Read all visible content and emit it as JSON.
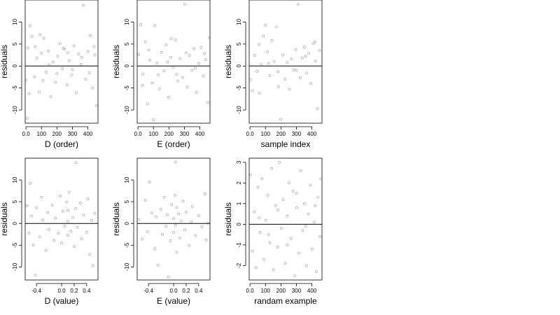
{
  "chart_data": [
    {
      "type": "scatter",
      "xlabel": "D (order)",
      "ylabel": "residuals",
      "xlim": [
        -5,
        465
      ],
      "ylim": [
        -13,
        15
      ],
      "xticks": [
        0,
        100,
        200,
        300,
        400
      ],
      "yticks": [
        -10,
        -5,
        0,
        5,
        10
      ],
      "hline": 0,
      "points": [
        [
          0,
          -3.2
        ],
        [
          12,
          4.1
        ],
        [
          25,
          9.1
        ],
        [
          40,
          6.7
        ],
        [
          55,
          -2.5
        ],
        [
          70,
          1.8
        ],
        [
          85,
          -5.9
        ],
        [
          100,
          2.9
        ],
        [
          115,
          6.3
        ],
        [
          130,
          -1.4
        ],
        [
          145,
          3.4
        ],
        [
          160,
          -7.0
        ],
        [
          175,
          0.9
        ],
        [
          190,
          -3.7
        ],
        [
          205,
          2.2
        ],
        [
          220,
          5.1
        ],
        [
          235,
          -0.6
        ],
        [
          250,
          3.8
        ],
        [
          265,
          -4.3
        ],
        [
          280,
          1.2
        ],
        [
          295,
          -2.0
        ],
        [
          310,
          4.6
        ],
        [
          325,
          -6.1
        ],
        [
          340,
          2.7
        ],
        [
          355,
          0.4
        ],
        [
          370,
          13.8
        ],
        [
          385,
          -3.0
        ],
        [
          400,
          3.3
        ],
        [
          415,
          6.9
        ],
        [
          430,
          -5.0
        ],
        [
          445,
          2.5
        ],
        [
          455,
          -9.0
        ],
        [
          20,
          -6.3
        ],
        [
          60,
          4.4
        ],
        [
          110,
          -3.3
        ],
        [
          150,
          0.2
        ],
        [
          200,
          -1.7
        ],
        [
          240,
          4.0
        ],
        [
          300,
          -0.8
        ],
        [
          360,
          2.0
        ],
        [
          410,
          -1.5
        ],
        [
          440,
          4.4
        ],
        [
          8,
          -11.9
        ],
        [
          90,
          7.1
        ],
        [
          270,
          3.0
        ]
      ]
    },
    {
      "type": "scatter",
      "xlabel": "E (order)",
      "ylabel": "residuals",
      "xlim": [
        -5,
        465
      ],
      "ylim": [
        -13,
        15
      ],
      "xticks": [
        0,
        100,
        200,
        300,
        400
      ],
      "yticks": [
        -10,
        -5,
        0,
        5,
        10
      ],
      "hline": 0,
      "points": [
        [
          5,
          2.6
        ],
        [
          18,
          9.4
        ],
        [
          32,
          -1.8
        ],
        [
          48,
          5.5
        ],
        [
          62,
          -8.6
        ],
        [
          78,
          1.3
        ],
        [
          92,
          -3.9
        ],
        [
          108,
          9.2
        ],
        [
          122,
          0.7
        ],
        [
          138,
          -5.2
        ],
        [
          152,
          3.1
        ],
        [
          168,
          -1.1
        ],
        [
          182,
          4.8
        ],
        [
          198,
          -7.1
        ],
        [
          212,
          2.0
        ],
        [
          228,
          -0.3
        ],
        [
          242,
          5.9
        ],
        [
          258,
          -3.4
        ],
        [
          272,
          1.7
        ],
        [
          288,
          -2.6
        ],
        [
          302,
          14.0
        ],
        [
          318,
          -4.8
        ],
        [
          332,
          2.4
        ],
        [
          348,
          -1.0
        ],
        [
          362,
          3.9
        ],
        [
          378,
          -6.0
        ],
        [
          392,
          0.6
        ],
        [
          408,
          4.2
        ],
        [
          422,
          -2.3
        ],
        [
          438,
          1.5
        ],
        [
          452,
          -8.3
        ],
        [
          28,
          -4.4
        ],
        [
          70,
          3.6
        ],
        [
          130,
          -2.0
        ],
        [
          190,
          0.9
        ],
        [
          250,
          -1.9
        ],
        [
          310,
          3.0
        ],
        [
          370,
          -0.5
        ],
        [
          430,
          2.8
        ],
        [
          460,
          6.4
        ],
        [
          100,
          -12.2
        ],
        [
          215,
          6.2
        ]
      ]
    },
    {
      "type": "scatter",
      "xlabel": "sample index",
      "ylabel": "residuals",
      "xlim": [
        -5,
        465
      ],
      "ylim": [
        -13,
        15
      ],
      "xticks": [
        0,
        100,
        200,
        300,
        400
      ],
      "yticks": [
        -10,
        -5,
        0,
        5,
        10
      ],
      "hline": 0,
      "points": [
        [
          3,
          -3.1
        ],
        [
          16,
          -5.6
        ],
        [
          30,
          2.4
        ],
        [
          45,
          -1.2
        ],
        [
          58,
          4.9
        ],
        [
          72,
          0.3
        ],
        [
          86,
          6.8
        ],
        [
          100,
          9.3
        ],
        [
          114,
          3.2
        ],
        [
          128,
          -2.2
        ],
        [
          142,
          5.8
        ],
        [
          156,
          1.0
        ],
        [
          170,
          8.9
        ],
        [
          184,
          -4.7
        ],
        [
          198,
          -12.1
        ],
        [
          212,
          2.5
        ],
        [
          226,
          -3.0
        ],
        [
          240,
          0.8
        ],
        [
          254,
          -5.3
        ],
        [
          268,
          1.6
        ],
        [
          282,
          -0.9
        ],
        [
          296,
          3.7
        ],
        [
          310,
          14.0
        ],
        [
          324,
          -2.7
        ],
        [
          338,
          1.9
        ],
        [
          352,
          4.3
        ],
        [
          366,
          -1.6
        ],
        [
          380,
          2.9
        ],
        [
          394,
          -4.0
        ],
        [
          408,
          5.1
        ],
        [
          422,
          1.1
        ],
        [
          436,
          -9.7
        ],
        [
          450,
          3.5
        ],
        [
          60,
          -6.2
        ],
        [
          120,
          0.6
        ],
        [
          180,
          -1.3
        ],
        [
          300,
          -1.0
        ],
        [
          360,
          2.2
        ],
        [
          420,
          5.5
        ]
      ]
    },
    {
      "type": "scatter",
      "xlabel": "D (value)",
      "ylabel": "residuals",
      "xlim": [
        -0.58,
        0.58
      ],
      "ylim": [
        -13,
        15
      ],
      "xticks": [
        -0.4,
        0.0,
        0.2,
        0.4
      ],
      "yticks": [
        -10,
        -5,
        0,
        5,
        10
      ],
      "hline": 0,
      "points": [
        [
          -0.55,
          4.1
        ],
        [
          -0.52,
          -2.2
        ],
        [
          -0.5,
          9.2
        ],
        [
          -0.48,
          1.7
        ],
        [
          -0.45,
          -5.0
        ],
        [
          -0.42,
          -11.9
        ],
        [
          -0.4,
          3.6
        ],
        [
          -0.35,
          -3.1
        ],
        [
          -0.32,
          6.0
        ],
        [
          -0.3,
          0.8
        ],
        [
          -0.25,
          -6.2
        ],
        [
          -0.22,
          2.5
        ],
        [
          -0.2,
          -1.4
        ],
        [
          -0.15,
          4.2
        ],
        [
          -0.12,
          -3.9
        ],
        [
          -0.1,
          1.2
        ],
        [
          -0.05,
          -2.3
        ],
        [
          -0.02,
          6.3
        ],
        [
          0.0,
          -4.5
        ],
        [
          0.02,
          2.8
        ],
        [
          0.05,
          -0.6
        ],
        [
          0.08,
          4.9
        ],
        [
          0.1,
          3.0
        ],
        [
          0.1,
          -2.7
        ],
        [
          0.1,
          0.5
        ],
        [
          0.12,
          7.2
        ],
        [
          0.15,
          -1.8
        ],
        [
          0.18,
          1.4
        ],
        [
          0.2,
          -5.3
        ],
        [
          0.22,
          3.4
        ],
        [
          0.25,
          -0.9
        ],
        [
          0.3,
          4.7
        ],
        [
          0.32,
          -3.5
        ],
        [
          0.35,
          1.9
        ],
        [
          0.4,
          -2.0
        ],
        [
          0.42,
          5.6
        ],
        [
          0.45,
          -7.1
        ],
        [
          0.48,
          0.7
        ],
        [
          0.5,
          -9.7
        ],
        [
          0.53,
          2.3
        ],
        [
          0.23,
          14.0
        ]
      ]
    },
    {
      "type": "scatter",
      "xlabel": "E (value)",
      "ylabel": "residuals",
      "xlim": [
        -0.58,
        0.58
      ],
      "ylim": [
        -13,
        15
      ],
      "xticks": [
        -0.4,
        0.0,
        0.2,
        0.4
      ],
      "yticks": [
        -10,
        -5,
        0,
        5,
        10
      ],
      "hline": 0,
      "points": [
        [
          -0.55,
          0.9
        ],
        [
          -0.5,
          -3.6
        ],
        [
          -0.45,
          5.3
        ],
        [
          -0.42,
          -1.9
        ],
        [
          -0.38,
          9.5
        ],
        [
          -0.35,
          2.4
        ],
        [
          -0.3,
          -5.8
        ],
        [
          -0.28,
          1.5
        ],
        [
          -0.25,
          -9.6
        ],
        [
          -0.2,
          3.2
        ],
        [
          -0.18,
          -2.5
        ],
        [
          -0.15,
          6.0
        ],
        [
          -0.12,
          -0.7
        ],
        [
          -0.1,
          2.0
        ],
        [
          -0.05,
          -4.0
        ],
        [
          -0.03,
          4.3
        ],
        [
          0.0,
          1.1
        ],
        [
          0.0,
          -2.1
        ],
        [
          0.02,
          6.5
        ],
        [
          0.03,
          -0.4
        ],
        [
          0.05,
          3.7
        ],
        [
          0.05,
          -6.6
        ],
        [
          0.08,
          2.2
        ],
        [
          0.1,
          -3.3
        ],
        [
          0.12,
          0.6
        ],
        [
          0.15,
          5.1
        ],
        [
          0.18,
          -1.5
        ],
        [
          0.2,
          2.6
        ],
        [
          0.25,
          -5.1
        ],
        [
          0.28,
          0.4
        ],
        [
          0.3,
          3.9
        ],
        [
          0.35,
          -2.8
        ],
        [
          0.4,
          1.8
        ],
        [
          0.45,
          -0.8
        ],
        [
          0.5,
          6.8
        ],
        [
          0.52,
          -3.8
        ],
        [
          0.55,
          0.1
        ],
        [
          -0.08,
          -12.3
        ],
        [
          0.03,
          14.1
        ]
      ]
    },
    {
      "type": "scatter",
      "xlabel": "randam example",
      "ylabel": "residuals",
      "xlim": [
        -5,
        465
      ],
      "ylim": [
        -2.7,
        3.2
      ],
      "xticks": [
        0,
        100,
        200,
        300,
        400
      ],
      "yticks": [
        -2,
        -1,
        0,
        1,
        2,
        3
      ],
      "hline": 0,
      "points": [
        [
          5,
          2.4
        ],
        [
          15,
          -1.3
        ],
        [
          28,
          0.6
        ],
        [
          40,
          -2.1
        ],
        [
          52,
          1.8
        ],
        [
          65,
          -0.4
        ],
        [
          78,
          2.2
        ],
        [
          90,
          -1.7
        ],
        [
          102,
          0.2
        ],
        [
          115,
          1.4
        ],
        [
          128,
          -0.9
        ],
        [
          140,
          2.7
        ],
        [
          152,
          -2.2
        ],
        [
          165,
          0.9
        ],
        [
          178,
          -1.1
        ],
        [
          190,
          3.0
        ],
        [
          202,
          -0.2
        ],
        [
          215,
          1.2
        ],
        [
          228,
          -1.9
        ],
        [
          240,
          0.4
        ],
        [
          252,
          2.0
        ],
        [
          265,
          -0.7
        ],
        [
          278,
          1.6
        ],
        [
          290,
          -2.5
        ],
        [
          302,
          0.8
        ],
        [
          315,
          -1.4
        ],
        [
          328,
          2.6
        ],
        [
          340,
          -0.3
        ],
        [
          352,
          1.0
        ],
        [
          365,
          -2.0
        ],
        [
          378,
          0.5
        ],
        [
          390,
          1.9
        ],
        [
          402,
          -1.2
        ],
        [
          415,
          0.1
        ],
        [
          428,
          -2.3
        ],
        [
          440,
          1.3
        ],
        [
          452,
          -0.6
        ],
        [
          458,
          2.2
        ],
        [
          60,
          0.3
        ],
        [
          120,
          -0.5
        ],
        [
          180,
          0.7
        ],
        [
          240,
          -1.0
        ],
        [
          300,
          1.5
        ],
        [
          360,
          -0.1
        ],
        [
          420,
          0.9
        ]
      ]
    }
  ]
}
